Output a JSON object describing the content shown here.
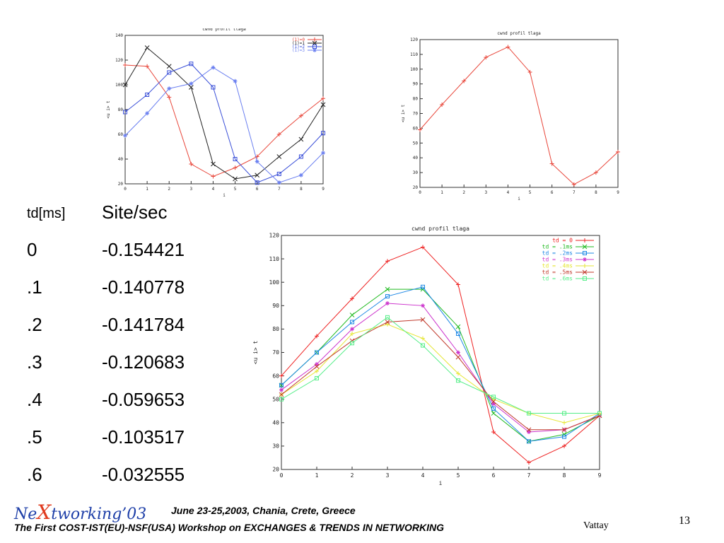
{
  "chart_data": [
    {
      "type": "line",
      "title": "cwnd profil  tlaga",
      "xlabel": "i",
      "ylabel": "<u i> t",
      "xlim": [
        0,
        9
      ],
      "ylim": [
        20,
        140
      ],
      "xticks": [
        "0",
        "1",
        "2",
        "3",
        "4",
        "5",
        "6",
        "7",
        "8",
        "9"
      ],
      "yticks": [
        "20",
        "40",
        "60",
        "80",
        "100",
        "120",
        "140"
      ],
      "legend_position": "top-right",
      "x": [
        0,
        1,
        2,
        3,
        4,
        5,
        6,
        7,
        8,
        9
      ],
      "series": [
        {
          "name": "(1)=0",
          "color": "#e8463a",
          "values": [
            116,
            115,
            90,
            36,
            26,
            33,
            42,
            60,
            75,
            89
          ]
        },
        {
          "name": "(1)=1",
          "color": "#222222",
          "values": [
            100,
            130,
            115,
            98,
            36,
            24,
            27,
            42,
            56,
            84
          ]
        },
        {
          "name": "(1)=2",
          "color": "#3a4fd8",
          "values": [
            78,
            92,
            110,
            117,
            98,
            40,
            21,
            28,
            42,
            61
          ]
        },
        {
          "name": "(1)=3",
          "color": "#6a7ff0",
          "values": [
            59,
            77,
            97,
            101,
            114,
            103,
            38,
            21,
            27,
            45
          ]
        }
      ]
    },
    {
      "type": "line",
      "title": "cwnd profil  tlaga",
      "xlabel": "i",
      "ylabel": "<u i> t",
      "xlim": [
        0,
        9
      ],
      "ylim": [
        20,
        120
      ],
      "xticks": [
        "0",
        "1",
        "2",
        "3",
        "4",
        "5",
        "6",
        "7",
        "8",
        "9"
      ],
      "yticks": [
        "20",
        "30",
        "40",
        "50",
        "60",
        "70",
        "80",
        "90",
        "100",
        "110",
        "120"
      ],
      "x": [
        0,
        1,
        2,
        3,
        4,
        5,
        6,
        7,
        8,
        9
      ],
      "series": [
        {
          "color": "#e8463a",
          "values": [
            59,
            76,
            92,
            108,
            115,
            98,
            36,
            22,
            30,
            44
          ]
        }
      ]
    },
    {
      "type": "line",
      "title": "cwnd profil  tlaga",
      "xlabel": "i",
      "ylabel": "<u i> t",
      "xlim": [
        0,
        9
      ],
      "ylim": [
        20,
        120
      ],
      "xticks": [
        "0",
        "1",
        "2",
        "3",
        "4",
        "5",
        "6",
        "7",
        "8",
        "9"
      ],
      "yticks": [
        "20",
        "30",
        "40",
        "50",
        "60",
        "70",
        "80",
        "90",
        "100",
        "110",
        "120"
      ],
      "legend_position": "top-right",
      "x": [
        0,
        1,
        2,
        3,
        4,
        5,
        6,
        7,
        8,
        9
      ],
      "series": [
        {
          "name": "td = 0",
          "color": "#ee2222",
          "values": [
            60,
            77,
            93,
            109,
            115,
            99,
            36,
            23,
            30,
            43
          ]
        },
        {
          "name": "td = .1ms",
          "color": "#22bb22",
          "values": [
            56,
            70,
            86,
            97,
            97,
            81,
            44,
            32,
            35,
            43
          ]
        },
        {
          "name": "td = .2ms",
          "color": "#1e88e5",
          "values": [
            56,
            70,
            83,
            94,
            98,
            78,
            46,
            32,
            34,
            44
          ]
        },
        {
          "name": "td = .3ms",
          "color": "#cc33cc",
          "values": [
            54,
            65,
            80,
            91,
            90,
            70,
            48,
            36,
            37,
            43
          ]
        },
        {
          "name": "td = .4ms",
          "color": "#e6e634",
          "values": [
            52,
            62,
            78,
            82,
            76,
            61,
            50,
            44,
            40,
            44
          ]
        },
        {
          "name": "td = .5ms",
          "color": "#c0392b",
          "values": [
            52,
            64,
            75,
            83,
            84,
            68,
            49,
            37,
            37,
            43
          ]
        },
        {
          "name": "td = .6ms",
          "color": "#55ee88",
          "values": [
            50,
            59,
            74,
            85,
            73,
            58,
            51,
            44,
            44,
            44
          ]
        }
      ]
    }
  ],
  "table": {
    "header": {
      "col1": "td[ms]",
      "col2": "Site/sec"
    },
    "rows": [
      {
        "td": "0",
        "rate": "-0.154421"
      },
      {
        "td": ".1",
        "rate": "-0.140778"
      },
      {
        "td": ".2",
        "rate": "-0.141784"
      },
      {
        "td": ".3",
        "rate": "-0.120683"
      },
      {
        "td": ".4",
        "rate": "-0.059653"
      },
      {
        "td": ".5",
        "rate": "-0.103517"
      },
      {
        "td": ".6",
        "rate": "-0.032555"
      }
    ]
  },
  "footer": {
    "brand_pre": "Ne",
    "brand_x": "X",
    "brand_post": "tworking’03",
    "conference": "June 23-25,2003, Chania, Crete, Greece",
    "workshop": "The First COST-IST(EU)-NSF(USA) Workshop on EXCHANGES & TRENDS IN NETWORKING",
    "author": "Vattay",
    "page_number": "13"
  }
}
